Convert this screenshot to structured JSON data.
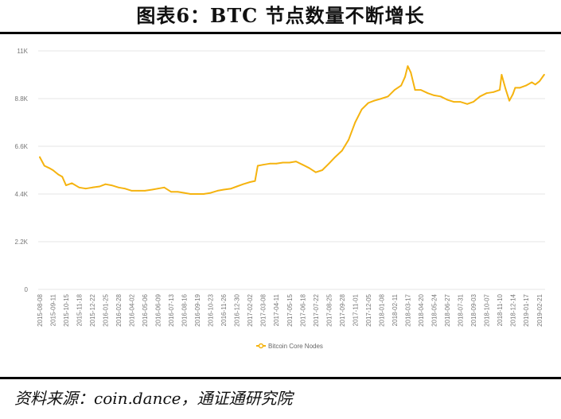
{
  "header": {
    "title": "图表6：BTC 节点数量不断增长"
  },
  "footer": {
    "source": "资料来源：coin.dance，通证通研究院"
  },
  "colors": {
    "series": "#f5b30f",
    "grid": "#e6e6e6",
    "rule": "#000000"
  },
  "chart_data": {
    "type": "line",
    "title": "图表6：BTC 节点数量不断增长",
    "xlabel": "",
    "ylabel": "",
    "ylim": [
      0,
      11000
    ],
    "y_ticks": [
      {
        "value": 0,
        "label": "0"
      },
      {
        "value": 2200,
        "label": "2.2K"
      },
      {
        "value": 4400,
        "label": "4.4K"
      },
      {
        "value": 6600,
        "label": "6.6K"
      },
      {
        "value": 8800,
        "label": "8.8K"
      },
      {
        "value": 11000,
        "label": "11K"
      }
    ],
    "x_tick_labels": [
      "2015-08-08",
      "2015-09-11",
      "2015-10-15",
      "2015-11-18",
      "2015-12-22",
      "2016-01-25",
      "2016-02-28",
      "2016-04-02",
      "2016-05-06",
      "2016-06-09",
      "2016-07-13",
      "2016-08-16",
      "2016-09-19",
      "2016-10-23",
      "2016-11-26",
      "2016-12-30",
      "2017-02-02",
      "2017-03-08",
      "2017-04-11",
      "2017-05-15",
      "2017-06-18",
      "2017-07-22",
      "2017-08-25",
      "2017-09-28",
      "2017-11-01",
      "2017-12-05",
      "2018-01-08",
      "2018-02-11",
      "2018-03-17",
      "2018-04-20",
      "2018-05-24",
      "2018-06-27",
      "2018-07-31",
      "2018-09-03",
      "2018-10-07",
      "2018-11-10",
      "2018-12-14",
      "2019-01-17",
      "2019-02-21"
    ],
    "grid": true,
    "legend_position": "bottom",
    "series": [
      {
        "name": "Bitcoin Core Nodes",
        "x": [
          "2015-08-08",
          "2015-08-20",
          "2015-09-01",
          "2015-09-11",
          "2015-09-25",
          "2015-10-05",
          "2015-10-15",
          "2015-10-30",
          "2015-11-18",
          "2015-12-05",
          "2015-12-22",
          "2016-01-10",
          "2016-01-25",
          "2016-02-10",
          "2016-02-28",
          "2016-03-15",
          "2016-04-02",
          "2016-04-20",
          "2016-05-06",
          "2016-05-25",
          "2016-06-09",
          "2016-06-25",
          "2016-07-13",
          "2016-07-30",
          "2016-08-16",
          "2016-09-01",
          "2016-09-19",
          "2016-10-05",
          "2016-10-23",
          "2016-11-10",
          "2016-11-26",
          "2016-12-15",
          "2016-12-30",
          "2017-01-15",
          "2017-02-02",
          "2017-02-15",
          "2017-02-22",
          "2017-03-08",
          "2017-03-25",
          "2017-04-11",
          "2017-04-28",
          "2017-05-15",
          "2017-06-01",
          "2017-06-18",
          "2017-07-05",
          "2017-07-22",
          "2017-08-08",
          "2017-08-25",
          "2017-09-10",
          "2017-09-28",
          "2017-10-15",
          "2017-11-01",
          "2017-11-18",
          "2017-12-05",
          "2017-12-20",
          "2018-01-08",
          "2018-01-25",
          "2018-02-11",
          "2018-02-28",
          "2018-03-10",
          "2018-03-17",
          "2018-03-25",
          "2018-04-05",
          "2018-04-20",
          "2018-05-08",
          "2018-05-24",
          "2018-06-10",
          "2018-06-27",
          "2018-07-14",
          "2018-07-31",
          "2018-08-18",
          "2018-09-03",
          "2018-09-20",
          "2018-10-07",
          "2018-10-25",
          "2018-11-10",
          "2018-11-15",
          "2018-11-25",
          "2018-12-05",
          "2018-12-14",
          "2018-12-20",
          "2019-01-01",
          "2019-01-17",
          "2019-02-01",
          "2019-02-10",
          "2019-02-21",
          "2019-03-05"
        ],
        "values": [
          6100,
          5700,
          5600,
          5500,
          5300,
          5200,
          4800,
          4900,
          4700,
          4650,
          4700,
          4750,
          4850,
          4800,
          4700,
          4650,
          4550,
          4550,
          4550,
          4600,
          4650,
          4700,
          4500,
          4500,
          4450,
          4400,
          4400,
          4400,
          4450,
          4550,
          4600,
          4650,
          4750,
          4850,
          4950,
          5000,
          5700,
          5750,
          5800,
          5800,
          5850,
          5850,
          5900,
          5750,
          5600,
          5400,
          5500,
          5800,
          6100,
          6400,
          6900,
          7700,
          8300,
          8600,
          8700,
          8800,
          8900,
          9200,
          9400,
          9800,
          10300,
          10000,
          9200,
          9200,
          9050,
          8950,
          8900,
          8750,
          8650,
          8650,
          8550,
          8650,
          8900,
          9050,
          9100,
          9200,
          9900,
          9250,
          8700,
          9000,
          9300,
          9300,
          9400,
          9550,
          9450,
          9600,
          9900
        ]
      }
    ]
  }
}
